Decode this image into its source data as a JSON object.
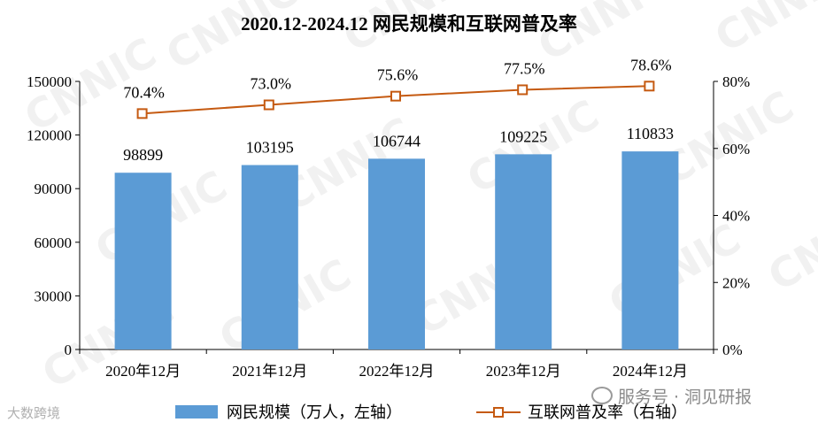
{
  "chart_data": {
    "type": "bar+line",
    "title": "2020.12-2024.12 网民规模和互联网普及率",
    "categories": [
      "2020年12月",
      "2021年12月",
      "2022年12月",
      "2023年12月",
      "2024年12月"
    ],
    "series": [
      {
        "name": "网民规模（万人，左轴）",
        "type": "bar",
        "axis": "left",
        "color": "#5b9bd5",
        "values": [
          98899,
          103195,
          106744,
          109225,
          110833
        ],
        "labels": [
          "98899",
          "103195",
          "106744",
          "109225",
          "110833"
        ]
      },
      {
        "name": "互联网普及率（右轴）",
        "type": "line",
        "axis": "right",
        "color": "#c55a11",
        "values": [
          70.4,
          73.0,
          75.6,
          77.5,
          78.6
        ],
        "labels": [
          "70.4%",
          "73.0%",
          "75.6%",
          "77.5%",
          "78.6%"
        ]
      }
    ],
    "y_left": {
      "ylim": [
        0,
        150000
      ],
      "ticks": [
        "0",
        "30000",
        "60000",
        "90000",
        "120000",
        "150000"
      ]
    },
    "y_right": {
      "ylim": [
        0,
        80
      ],
      "ticks": [
        "0%",
        "20%",
        "40%",
        "60%",
        "80%"
      ]
    },
    "grid": false,
    "legend": "bottom"
  },
  "watermark": "CNNIC",
  "source_left": "大数跨境",
  "source_right": "服务号 · 洞见研报"
}
